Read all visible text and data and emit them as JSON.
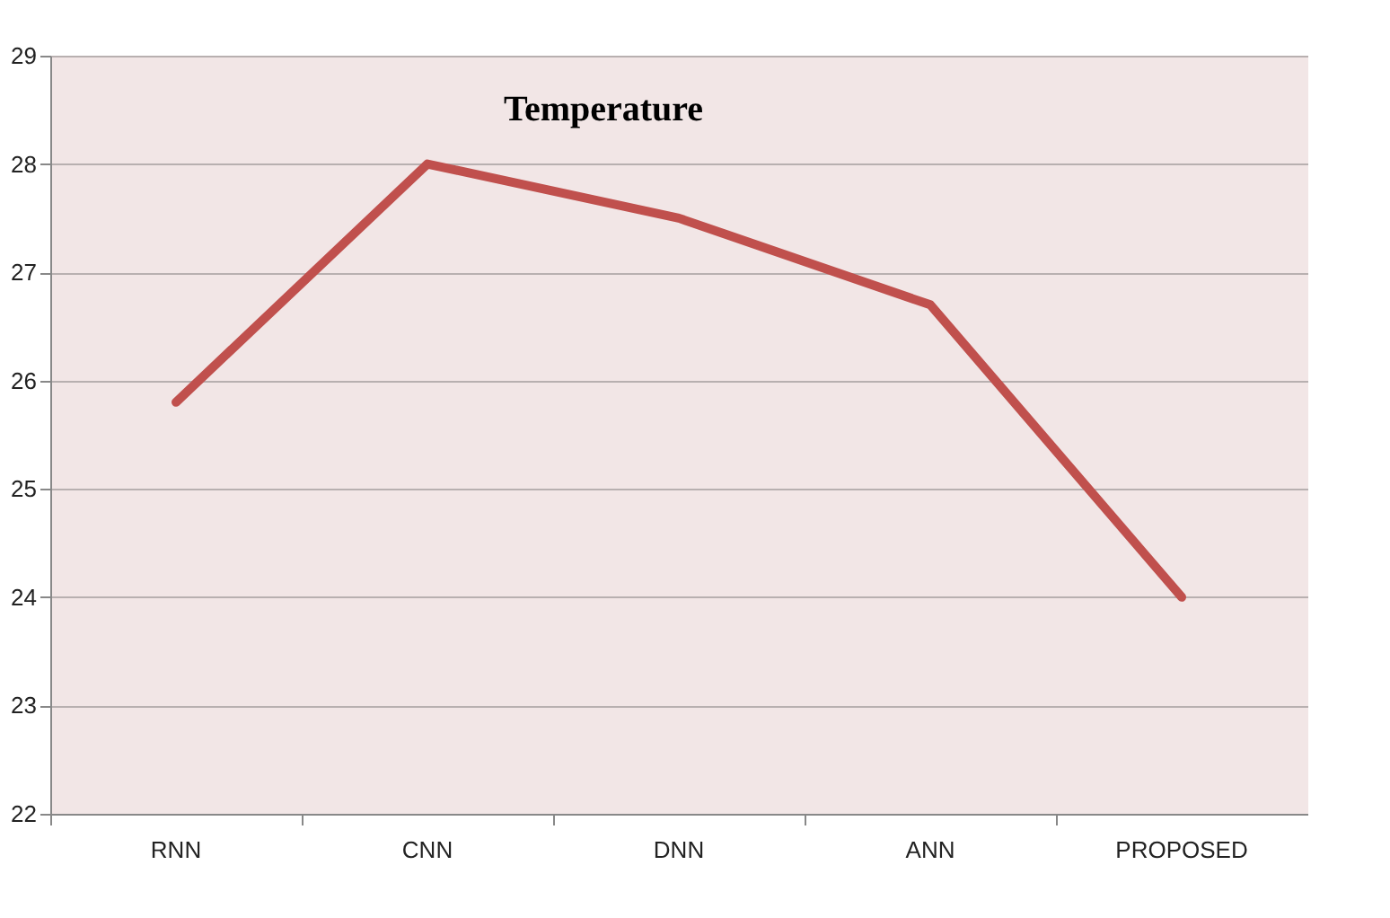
{
  "chart_data": {
    "type": "line",
    "title": "Temperature",
    "categories": [
      "RNN",
      "CNN",
      "DNN",
      "ANN",
      "PROPOSED"
    ],
    "series": [
      {
        "color": "#c0504d",
        "values": [
          25.8,
          28.0,
          27.5,
          26.7,
          24.0
        ]
      }
    ],
    "ylim": [
      22,
      29
    ],
    "yticks": [
      22,
      23,
      24,
      25,
      26,
      27,
      28,
      29
    ],
    "grid": "y",
    "marker": "none",
    "line_style": "solid"
  }
}
